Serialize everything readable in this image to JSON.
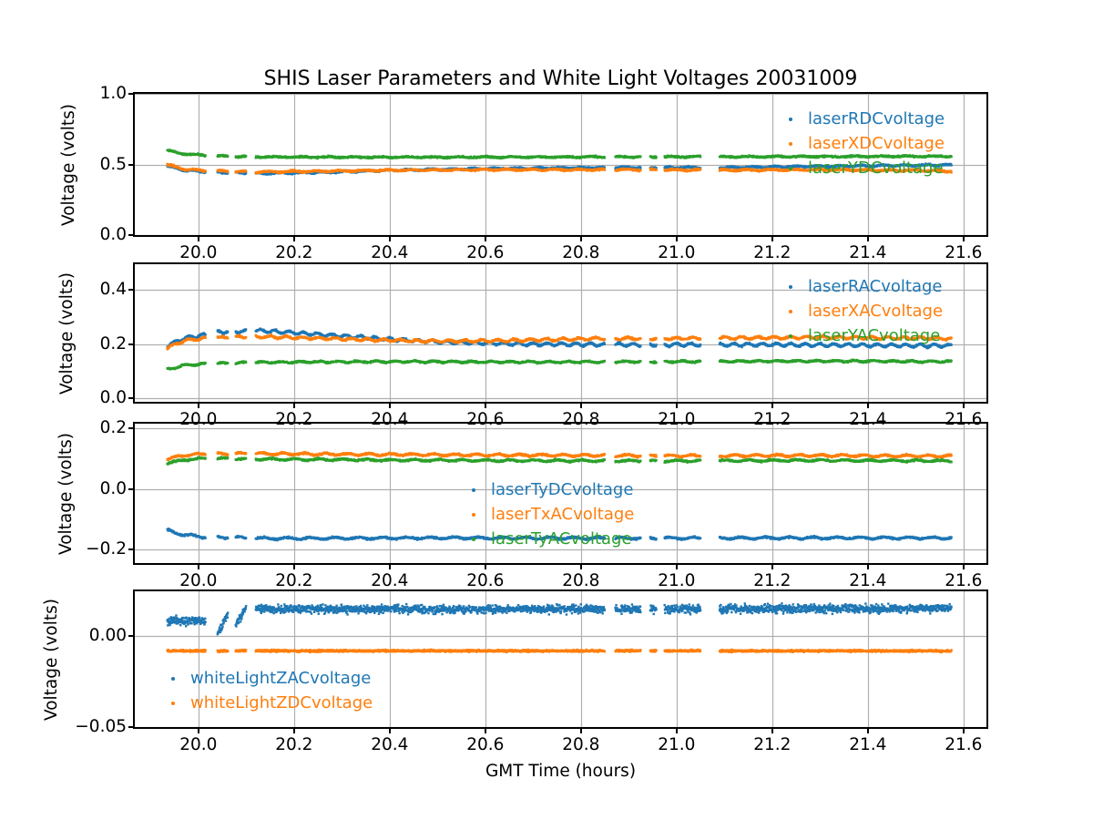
{
  "figure": {
    "title": "SHIS Laser Parameters and White Light Voltages 20031009",
    "xlabel": "GMT Time (hours)",
    "background": "#ffffff"
  },
  "colors": {
    "blue": "#1f77b4",
    "orange": "#ff7f0e",
    "green": "#2ca02c",
    "grid": "#b0b0b0",
    "spine": "#000000"
  },
  "time_segments": [
    [
      19.935,
      20.015
    ],
    [
      20.04,
      20.062
    ],
    [
      20.078,
      20.1
    ],
    [
      20.12,
      20.85
    ],
    [
      20.872,
      20.925
    ],
    [
      20.945,
      20.958
    ],
    [
      20.975,
      21.05
    ],
    [
      21.09,
      21.575
    ]
  ],
  "xticks": [
    {
      "value": 20.0,
      "label": "20.0"
    },
    {
      "value": 20.2,
      "label": "20.2"
    },
    {
      "value": 20.4,
      "label": "20.4"
    },
    {
      "value": 20.6,
      "label": "20.6"
    },
    {
      "value": 20.8,
      "label": "20.8"
    },
    {
      "value": 21.0,
      "label": "21.0"
    },
    {
      "value": 21.2,
      "label": "21.2"
    },
    {
      "value": 21.4,
      "label": "21.4"
    },
    {
      "value": 21.6,
      "label": "21.6"
    }
  ],
  "chart_data": [
    {
      "type": "scatter",
      "ylabel": "Voltage (volts)",
      "xlim": [
        19.867,
        21.648
      ],
      "ylim": [
        0.0,
        1.0
      ],
      "grid": true,
      "yticks": [
        {
          "value": 1.0,
          "label": "1.0"
        },
        {
          "value": 0.5,
          "label": "0.5"
        },
        {
          "value": 0.0,
          "label": "0.0"
        }
      ],
      "legend": {
        "position": "upper-right",
        "entries": [
          {
            "label": "laserRDCvoltage",
            "color": "#1f77b4"
          },
          {
            "label": "laserXDCvoltage",
            "color": "#ff7f0e"
          },
          {
            "label": "laserYDCvoltage",
            "color": "#2ca02c"
          }
        ]
      },
      "series": [
        {
          "name": "laserRDCvoltage",
          "color": "#1f77b4",
          "noise": 0.003,
          "wiggle_amp": 0.004,
          "wiggle_period": 0.045,
          "keyframes": [
            [
              19.935,
              0.487
            ],
            [
              19.97,
              0.46
            ],
            [
              20.015,
              0.447
            ],
            [
              20.06,
              0.443
            ],
            [
              20.1,
              0.44
            ],
            [
              20.13,
              0.437
            ],
            [
              20.25,
              0.443
            ],
            [
              20.4,
              0.458
            ],
            [
              20.55,
              0.468
            ],
            [
              20.7,
              0.474
            ],
            [
              20.9,
              0.478
            ],
            [
              21.1,
              0.478
            ],
            [
              21.3,
              0.487
            ],
            [
              21.575,
              0.497
            ]
          ]
        },
        {
          "name": "laserXDCvoltage",
          "color": "#ff7f0e",
          "noise": 0.003,
          "wiggle_amp": 0.004,
          "wiggle_period": 0.05,
          "keyframes": [
            [
              19.935,
              0.497
            ],
            [
              19.97,
              0.468
            ],
            [
              20.015,
              0.455
            ],
            [
              20.06,
              0.452
            ],
            [
              20.1,
              0.449
            ],
            [
              20.13,
              0.447
            ],
            [
              20.25,
              0.452
            ],
            [
              20.4,
              0.459
            ],
            [
              20.55,
              0.462
            ],
            [
              20.7,
              0.463
            ],
            [
              20.9,
              0.462
            ],
            [
              21.1,
              0.46
            ],
            [
              21.3,
              0.462
            ],
            [
              21.5,
              0.458
            ],
            [
              21.575,
              0.452
            ]
          ]
        },
        {
          "name": "laserYDCvoltage",
          "color": "#2ca02c",
          "noise": 0.003,
          "wiggle_amp": 0.003,
          "wiggle_period": 0.055,
          "keyframes": [
            [
              19.935,
              0.598
            ],
            [
              19.97,
              0.575
            ],
            [
              20.015,
              0.563
            ],
            [
              20.06,
              0.558
            ],
            [
              20.1,
              0.556
            ],
            [
              20.13,
              0.553
            ],
            [
              20.4,
              0.551
            ],
            [
              20.8,
              0.553
            ],
            [
              21.2,
              0.555
            ],
            [
              21.575,
              0.558
            ]
          ]
        }
      ]
    },
    {
      "type": "scatter",
      "ylabel": "Voltage (volts)",
      "xlim": [
        19.867,
        21.648
      ],
      "ylim": [
        -0.012,
        0.494
      ],
      "grid": true,
      "yticks": [
        {
          "value": 0.4,
          "label": "0.4"
        },
        {
          "value": 0.2,
          "label": "0.2"
        },
        {
          "value": 0.0,
          "label": "0.0"
        }
      ],
      "legend": {
        "position": "upper-right",
        "entries": [
          {
            "label": "laserRACvoltage",
            "color": "#1f77b4"
          },
          {
            "label": "laserXACvoltage",
            "color": "#ff7f0e"
          },
          {
            "label": "laserYACvoltage",
            "color": "#2ca02c"
          }
        ]
      },
      "series": [
        {
          "name": "laserRACvoltage",
          "color": "#1f77b4",
          "noise": 0.0017,
          "wiggle_amp": 0.005,
          "wiggle_period": 0.03,
          "keyframes": [
            [
              19.935,
              0.193
            ],
            [
              19.97,
              0.222
            ],
            [
              20.015,
              0.234
            ],
            [
              20.04,
              0.243
            ],
            [
              20.062,
              0.247
            ],
            [
              20.1,
              0.247
            ],
            [
              20.13,
              0.25
            ],
            [
              20.2,
              0.242
            ],
            [
              20.3,
              0.23
            ],
            [
              20.4,
              0.218
            ],
            [
              20.5,
              0.209
            ],
            [
              20.6,
              0.204
            ],
            [
              20.7,
              0.2
            ],
            [
              20.9,
              0.198
            ],
            [
              21.2,
              0.198
            ],
            [
              21.575,
              0.194
            ]
          ]
        },
        {
          "name": "laserXACvoltage",
          "color": "#ff7f0e",
          "noise": 0.0017,
          "wiggle_amp": 0.004,
          "wiggle_period": 0.034,
          "keyframes": [
            [
              19.935,
              0.186
            ],
            [
              19.97,
              0.213
            ],
            [
              20.015,
              0.222
            ],
            [
              20.062,
              0.225
            ],
            [
              20.13,
              0.228
            ],
            [
              20.3,
              0.219
            ],
            [
              20.45,
              0.212
            ],
            [
              20.55,
              0.211
            ],
            [
              20.7,
              0.215
            ],
            [
              20.85,
              0.221
            ],
            [
              21.0,
              0.221
            ],
            [
              21.3,
              0.225
            ],
            [
              21.575,
              0.221
            ]
          ]
        },
        {
          "name": "laserYACvoltage",
          "color": "#2ca02c",
          "noise": 0.0015,
          "wiggle_amp": 0.0025,
          "wiggle_period": 0.04,
          "keyframes": [
            [
              19.935,
              0.107
            ],
            [
              19.97,
              0.122
            ],
            [
              20.015,
              0.128
            ],
            [
              20.13,
              0.133
            ],
            [
              20.4,
              0.136
            ],
            [
              20.7,
              0.134
            ],
            [
              21.0,
              0.136
            ],
            [
              21.3,
              0.138
            ],
            [
              21.575,
              0.136
            ]
          ]
        }
      ]
    },
    {
      "type": "scatter",
      "ylabel": "Voltage (volts)",
      "xlim": [
        19.867,
        21.648
      ],
      "ylim": [
        -0.245,
        0.215
      ],
      "grid": true,
      "yticks": [
        {
          "value": 0.2,
          "label": "0.2"
        },
        {
          "value": 0.0,
          "label": "0.0"
        },
        {
          "value": -0.2,
          "label": "−0.2"
        }
      ],
      "legend": {
        "position": "center",
        "entries": [
          {
            "label": "laserTyDCvoltage",
            "color": "#1f77b4"
          },
          {
            "label": "laserTxACvoltage",
            "color": "#ff7f0e"
          },
          {
            "label": "laserTyACvoltage",
            "color": "#2ca02c"
          }
        ]
      },
      "series": [
        {
          "name": "laserTyDCvoltage",
          "color": "#1f77b4",
          "noise": 0.0015,
          "wiggle_amp": 0.003,
          "wiggle_period": 0.05,
          "keyframes": [
            [
              19.935,
              -0.137
            ],
            [
              19.97,
              -0.152
            ],
            [
              20.015,
              -0.159
            ],
            [
              20.1,
              -0.162
            ],
            [
              20.13,
              -0.164
            ],
            [
              20.5,
              -0.162
            ],
            [
              20.9,
              -0.163
            ],
            [
              21.3,
              -0.162
            ],
            [
              21.575,
              -0.162
            ]
          ]
        },
        {
          "name": "laserTxACvoltage",
          "color": "#ff7f0e",
          "noise": 0.0015,
          "wiggle_amp": 0.003,
          "wiggle_period": 0.045,
          "keyframes": [
            [
              19.935,
              0.098
            ],
            [
              19.97,
              0.111
            ],
            [
              20.015,
              0.115
            ],
            [
              20.13,
              0.116
            ],
            [
              20.4,
              0.113
            ],
            [
              20.7,
              0.111
            ],
            [
              21.0,
              0.109
            ],
            [
              21.3,
              0.11
            ],
            [
              21.575,
              0.108
            ]
          ]
        },
        {
          "name": "laserTyACvoltage",
          "color": "#2ca02c",
          "noise": 0.0014,
          "wiggle_amp": 0.0025,
          "wiggle_period": 0.05,
          "keyframes": [
            [
              19.935,
              0.083
            ],
            [
              19.97,
              0.096
            ],
            [
              20.015,
              0.1
            ],
            [
              20.13,
              0.098
            ],
            [
              20.4,
              0.095
            ],
            [
              20.7,
              0.093
            ],
            [
              21.0,
              0.092
            ],
            [
              21.3,
              0.094
            ],
            [
              21.575,
              0.092
            ]
          ]
        }
      ]
    },
    {
      "type": "scatter",
      "ylabel": "Voltage (volts)",
      "xlim": [
        19.867,
        21.648
      ],
      "ylim": [
        -0.05,
        0.0245
      ],
      "grid": true,
      "yticks": [
        {
          "value": 0.0,
          "label": "0.00"
        },
        {
          "value": -0.05,
          "label": "−0.05"
        }
      ],
      "legend": {
        "position": "lower-left",
        "entries": [
          {
            "label": "whiteLightZACvoltage",
            "color": "#1f77b4"
          },
          {
            "label": "whiteLightZDCvoltage",
            "color": "#ff7f0e"
          }
        ]
      },
      "series": [
        {
          "name": "whiteLightZACvoltage",
          "color": "#1f77b4",
          "noise": 0.0011,
          "wiggle_amp": 0.0,
          "wiggle_period": 0.05,
          "keyframes": [
            [
              19.935,
              0.0085
            ],
            [
              19.97,
              0.0082
            ],
            [
              20.015,
              0.008
            ],
            [
              20.04,
              0.0005
            ],
            [
              20.062,
              0.0125
            ],
            [
              20.078,
              0.0055
            ],
            [
              20.1,
              0.016
            ],
            [
              20.13,
              0.0148
            ],
            [
              20.5,
              0.0146
            ],
            [
              21.0,
              0.0148
            ],
            [
              21.575,
              0.015
            ]
          ]
        },
        {
          "name": "whiteLightZDCvoltage",
          "color": "#ff7f0e",
          "noise": 0.00028,
          "wiggle_amp": 0.0,
          "wiggle_period": 0.05,
          "keyframes": [
            [
              19.935,
              -0.0082
            ],
            [
              21.575,
              -0.0082
            ]
          ]
        }
      ]
    }
  ]
}
